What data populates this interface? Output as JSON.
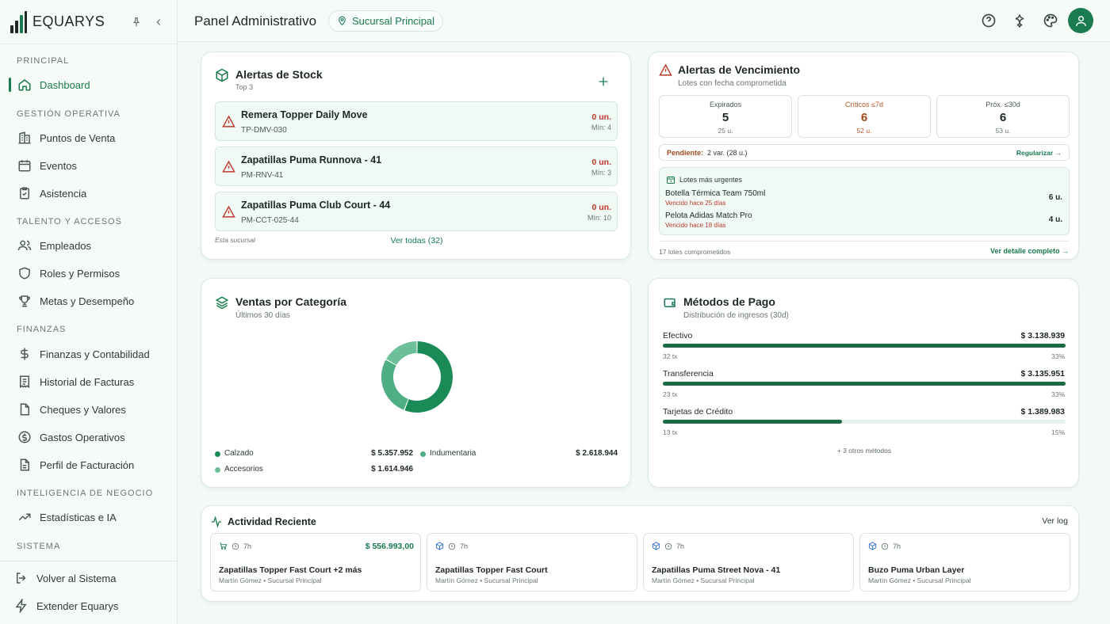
{
  "brand": {
    "name": "EQUARYS"
  },
  "sidebar": {
    "sections": [
      {
        "title": "PRINCIPAL"
      },
      {
        "title": "GESTIÓN OPERATIVA"
      },
      {
        "title": "TALENTO Y ACCESOS"
      },
      {
        "title": "FINANZAS"
      },
      {
        "title": "INTELIGENCIA DE NEGOCIO"
      },
      {
        "title": "SISTEMA"
      }
    ],
    "items": [
      {
        "label": "Dashboard",
        "icon": "home-icon"
      },
      {
        "label": "Puntos de Venta",
        "icon": "building-icon"
      },
      {
        "label": "Eventos",
        "icon": "calendar-icon"
      },
      {
        "label": "Asistencia",
        "icon": "clipboard-check-icon"
      },
      {
        "label": "Empleados",
        "icon": "users-icon"
      },
      {
        "label": "Roles y Permisos",
        "icon": "shield-icon"
      },
      {
        "label": "Metas y Desempeño",
        "icon": "trophy-icon"
      },
      {
        "label": "Finanzas y Contabilidad",
        "icon": "dollar-icon"
      },
      {
        "label": "Historial de Facturas",
        "icon": "receipt-icon"
      },
      {
        "label": "Cheques y Valores",
        "icon": "document-icon"
      },
      {
        "label": "Gastos Operativos",
        "icon": "coin-icon"
      },
      {
        "label": "Perfil de Facturación",
        "icon": "file-text-icon"
      },
      {
        "label": "Estadísticas e IA",
        "icon": "trending-up-icon"
      }
    ],
    "footer": [
      {
        "label": "Volver al Sistema",
        "icon": "logout-icon"
      },
      {
        "label": "Extender Equarys",
        "icon": "zap-icon"
      }
    ]
  },
  "header": {
    "title": "Panel Administrativo",
    "branch": "Sucursal Principal"
  },
  "stock_alerts": {
    "title": "Alertas de Stock",
    "subtitle": "Top 3",
    "items": [
      {
        "name": "Remera Topper Daily Move",
        "code": "TP-DMV-030",
        "qty": "0 un.",
        "min": "Mín: 4"
      },
      {
        "name": "Zapatillas Puma Runnova - 41",
        "code": "PM-RNV-41",
        "qty": "0 un.",
        "min": "Mín: 3"
      },
      {
        "name": "Zapatillas Puma Club Court - 44",
        "code": "PM-CCT-025-44",
        "qty": "0 un.",
        "min": "Mín: 10"
      }
    ],
    "footnote": "Esta sucursal",
    "see_all": "Ver todas (32)"
  },
  "expiry": {
    "title": "Alertas de Vencimiento",
    "subtitle": "Lotes con fecha comprometida",
    "boxes": [
      {
        "label": "Expirados",
        "count": "5",
        "units": "25 u."
      },
      {
        "label": "Críticos ≤7d",
        "count": "6",
        "units": "52 u."
      },
      {
        "label": "Próx. ≤30d",
        "count": "6",
        "units": "53 u."
      }
    ],
    "pending_label": "Pendiente:",
    "pending_value": "2 var. (28 u.)",
    "regularize": "Regularizar →",
    "urgent_title": "Lotes más urgentes",
    "urgent": [
      {
        "name": "Botella Térmica Team 750ml",
        "note": "Vencido hace 25 días",
        "qty": "6 u."
      },
      {
        "name": "Pelota Adidas Match Pro",
        "note": "Vencido hace 18 días",
        "qty": "4 u."
      }
    ],
    "footer_left": "17 lotes comprometidos",
    "footer_right": "Ver detalle completo →"
  },
  "sales_by_category": {
    "title": "Ventas por Categoría",
    "subtitle": "Últimos 30 días",
    "legend": [
      {
        "name": "Calzado",
        "value": "$ 5.357.952"
      },
      {
        "name": "Indumentaria",
        "value": "$ 2.618.944"
      },
      {
        "name": "Accesorios",
        "value": "$ 1.614.946"
      }
    ]
  },
  "chart_data": {
    "type": "pie",
    "categories": [
      "Calzado",
      "Indumentaria",
      "Accesorios"
    ],
    "values": [
      5357952,
      2618944,
      1614946
    ],
    "colors": [
      "#1a8a57",
      "#4fae84",
      "#6cbf99"
    ]
  },
  "payments": {
    "title": "Métodos de Pago",
    "subtitle": "Distribución de ingresos (30d)",
    "methods": [
      {
        "name": "Efectivo",
        "amount": "$ 3.138.939",
        "tx": "32 tx",
        "pct": "33%",
        "fraction": 1.0
      },
      {
        "name": "Transferencia",
        "amount": "$ 3.135.951",
        "tx": "23 tx",
        "pct": "33%",
        "fraction": 1.0
      },
      {
        "name": "Tarjetas de Crédito",
        "amount": "$ 1.389.983",
        "tx": "13 tx",
        "pct": "15%",
        "fraction": 0.445
      }
    ],
    "others": "+ 3 otros métodos"
  },
  "activity": {
    "title": "Actividad Reciente",
    "link": "Ver log",
    "items": [
      {
        "icon": "cart-icon",
        "time": "7h",
        "amount": "$ 556.993,00",
        "title": "Zapatillas Topper Fast Court +2 más",
        "by": "Martín Gómez • Sucursal Principal"
      },
      {
        "icon": "box-icon",
        "time": "7h",
        "amount": "",
        "title": "Zapatillas Topper Fast Court",
        "by": "Martín Gómez • Sucursal Principal"
      },
      {
        "icon": "box-icon",
        "time": "7h",
        "amount": "",
        "title": "Zapatillas Puma Street Nova - 41",
        "by": "Martín Gómez • Sucursal Principal"
      },
      {
        "icon": "box-icon",
        "time": "7h",
        "amount": "",
        "title": "Buzo Puma Urban Layer",
        "by": "Martín Gómez • Sucursal Principal"
      }
    ]
  },
  "colors": {
    "accent": "#1a7a50",
    "danger": "#c0392b",
    "critical": "#b35a2a"
  }
}
